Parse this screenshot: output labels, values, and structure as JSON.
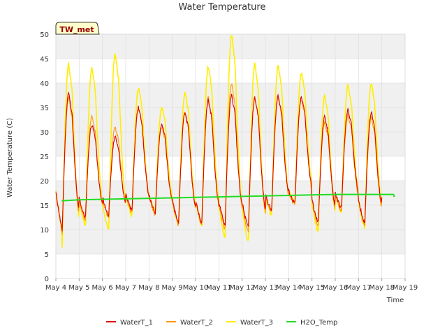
{
  "colors": {
    "background": "#ffffff",
    "band": "#f0f0f0",
    "grid": "#e0e0e0",
    "badge_bg": "#ffffcc",
    "badge_text": "#990000",
    "series": [
      "#dd0000",
      "#ff9900",
      "#ffee00",
      "#22dd22"
    ]
  },
  "chart_data": {
    "type": "line",
    "title": "Water Temperature",
    "xlabel": "Time",
    "ylabel": "Water Temperature (C)",
    "badge": "TW_met",
    "ylim": [
      0,
      50
    ],
    "yticks": [
      0,
      5,
      10,
      15,
      20,
      25,
      30,
      35,
      40,
      45,
      50
    ],
    "xlim": [
      "2024-05-04",
      "2024-05-19"
    ],
    "xticks": [
      "May 4",
      "May 5",
      "May 6",
      "May 7",
      "May 8",
      "May 9",
      "May 10",
      "May 11",
      "May 12",
      "May 13",
      "May 14",
      "May 15",
      "May 16",
      "May 17",
      "May 18",
      "May 19"
    ],
    "grid": true,
    "legend_position": "bottom",
    "series": [
      {
        "name": "WaterT_1",
        "daily_min": [
          9.5,
          12.5,
          13.0,
          14.0,
          13.5,
          11.5,
          11.5,
          11.0,
          10.5,
          14.0,
          15.5,
          11.5,
          14.5,
          11.5,
          12.0
        ],
        "daily_max": [
          38.0,
          31.5,
          29.0,
          35.0,
          31.5,
          34.0,
          36.5,
          37.5,
          37.0,
          37.5,
          37.0,
          33.0,
          34.5,
          34.0
        ]
      },
      {
        "name": "WaterT_2",
        "daily_min": [
          9.0,
          12.0,
          12.5,
          13.5,
          13.0,
          11.0,
          11.0,
          10.0,
          9.5,
          13.5,
          15.0,
          11.0,
          14.0,
          11.0,
          11.5
        ],
        "daily_max": [
          37.0,
          33.0,
          31.0,
          35.0,
          31.0,
          34.0,
          37.0,
          40.0,
          37.0,
          37.0,
          36.5,
          32.0,
          33.5,
          33.0
        ]
      },
      {
        "name": "WaterT_3",
        "daily_min": [
          6.5,
          11.0,
          10.0,
          13.0,
          13.5,
          11.0,
          11.0,
          8.5,
          7.5,
          13.0,
          15.5,
          9.5,
          13.5,
          10.5,
          11.0
        ],
        "daily_max": [
          44.0,
          43.0,
          46.0,
          39.0,
          35.0,
          38.0,
          43.5,
          50.0,
          44.0,
          43.5,
          42.0,
          37.5,
          39.5,
          40.0
        ]
      },
      {
        "name": "H2O_Temp",
        "x": [
          "2024-05-04 06:00",
          "2024-05-05",
          "2024-05-07",
          "2024-05-09",
          "2024-05-10",
          "2024-05-11",
          "2024-05-12",
          "2024-05-13",
          "2024-05-14",
          "2024-05-15",
          "2024-05-16",
          "2024-05-17",
          "2024-05-18",
          "2024-05-18 12:00",
          "2024-05-18 13:00"
        ],
        "y": [
          15.9,
          16.1,
          16.3,
          16.5,
          16.6,
          16.7,
          16.8,
          16.9,
          17.0,
          17.1,
          17.2,
          17.2,
          17.2,
          17.2,
          16.7
        ]
      }
    ]
  }
}
